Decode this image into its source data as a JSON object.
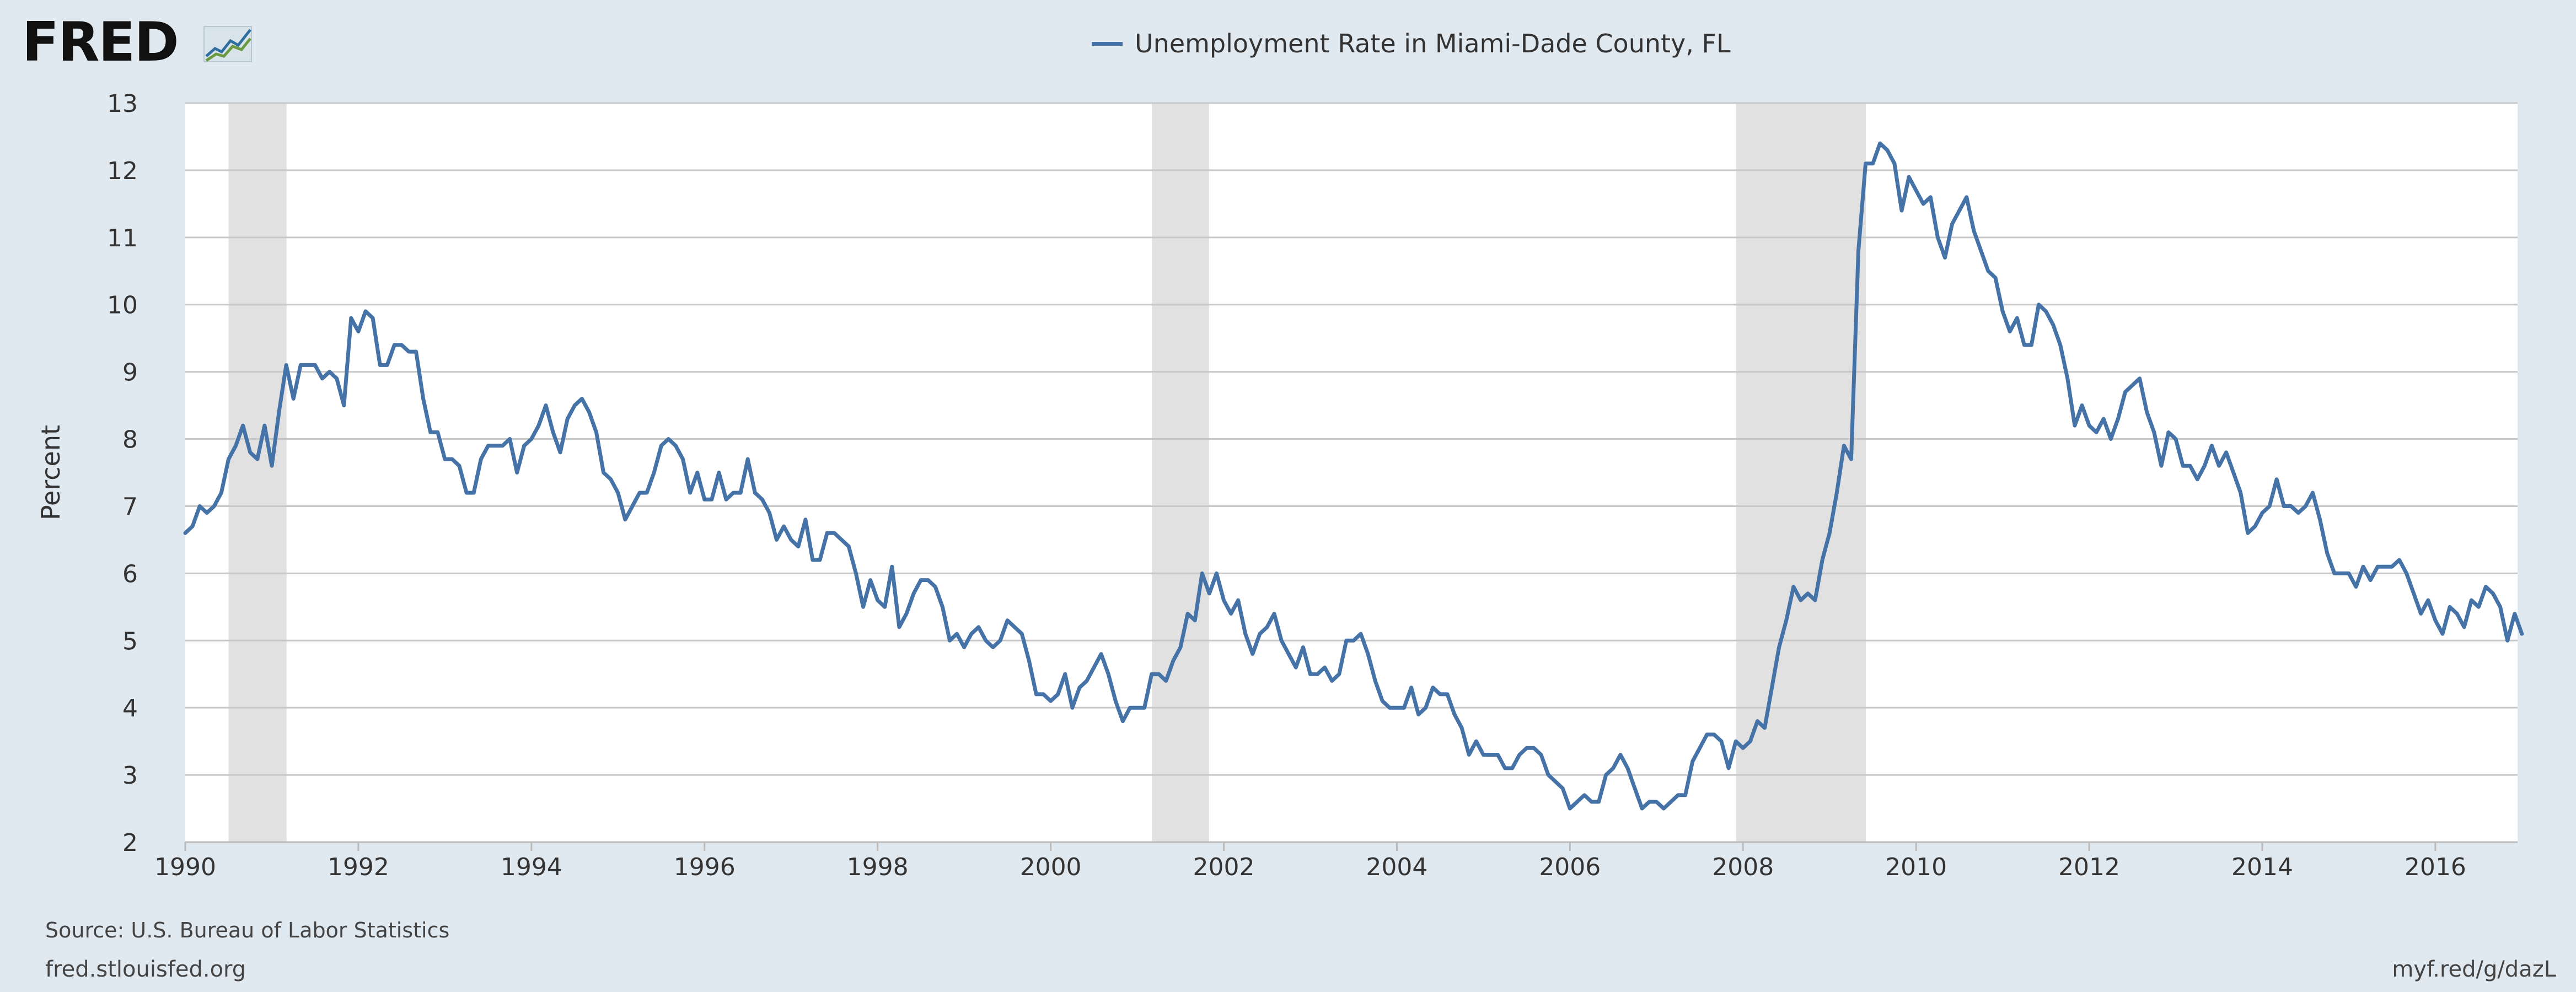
{
  "header": {
    "logo_text": "FRED",
    "logo_icon": "fred-chart-icon"
  },
  "footer": {
    "source": "Source: U.S. Bureau of Labor Statistics",
    "site": "fred.stlouisfed.org",
    "short_link": "myf.red/g/dazL"
  },
  "colors": {
    "line": "#4572a7",
    "recession": "#e1e1e1",
    "plot_bg": "#ffffff",
    "page_bg": "#e1e9f0"
  },
  "chart_data": {
    "type": "line",
    "title": "",
    "xlabel": "",
    "ylabel": "Percent",
    "xlim": [
      1990,
      2016.95
    ],
    "ylim": [
      2,
      13
    ],
    "y_ticks": [
      2,
      3,
      4,
      5,
      6,
      7,
      8,
      9,
      10,
      11,
      12,
      13
    ],
    "x_ticks": [
      "1990",
      "1992",
      "1994",
      "1996",
      "1998",
      "2000",
      "2002",
      "2004",
      "2006",
      "2008",
      "2010",
      "2012",
      "2014",
      "2016"
    ],
    "grid": true,
    "legend": "top-center",
    "recessions": [
      [
        1990.5,
        1991.17
      ],
      [
        2001.17,
        2001.83
      ],
      [
        2007.92,
        2009.42
      ]
    ],
    "series": [
      {
        "name": "Unemployment Rate in Miami-Dade County, FL",
        "start": "1990-01",
        "frequency": "monthly",
        "values": [
          6.6,
          6.7,
          7.0,
          6.9,
          7.0,
          7.2,
          7.7,
          7.9,
          8.2,
          7.8,
          7.7,
          8.2,
          7.6,
          8.4,
          9.1,
          8.6,
          9.1,
          9.1,
          9.1,
          8.9,
          9.0,
          8.9,
          8.5,
          9.8,
          9.6,
          9.9,
          9.8,
          9.1,
          9.1,
          9.4,
          9.4,
          9.3,
          9.3,
          8.6,
          8.1,
          8.1,
          7.7,
          7.7,
          7.6,
          7.2,
          7.2,
          7.7,
          7.9,
          7.9,
          7.9,
          8.0,
          7.5,
          7.9,
          8.0,
          8.2,
          8.5,
          8.1,
          7.8,
          8.3,
          8.5,
          8.6,
          8.4,
          8.1,
          7.5,
          7.4,
          7.2,
          6.8,
          7.0,
          7.2,
          7.2,
          7.5,
          7.9,
          8.0,
          7.9,
          7.7,
          7.2,
          7.5,
          7.1,
          7.1,
          7.5,
          7.1,
          7.2,
          7.2,
          7.7,
          7.2,
          7.1,
          6.9,
          6.5,
          6.7,
          6.5,
          6.4,
          6.8,
          6.2,
          6.2,
          6.6,
          6.6,
          6.5,
          6.4,
          6.0,
          5.5,
          5.9,
          5.6,
          5.5,
          6.1,
          5.2,
          5.4,
          5.7,
          5.9,
          5.9,
          5.8,
          5.5,
          5.0,
          5.1,
          4.9,
          5.1,
          5.2,
          5.0,
          4.9,
          5.0,
          5.3,
          5.2,
          5.1,
          4.7,
          4.2,
          4.2,
          4.1,
          4.2,
          4.5,
          4.0,
          4.3,
          4.4,
          4.6,
          4.8,
          4.5,
          4.1,
          3.8,
          4.0,
          4.0,
          4.0,
          4.5,
          4.5,
          4.4,
          4.7,
          4.9,
          5.4,
          5.3,
          6.0,
          5.7,
          6.0,
          5.6,
          5.4,
          5.6,
          5.1,
          4.8,
          5.1,
          5.2,
          5.4,
          5.0,
          4.8,
          4.6,
          4.9,
          4.5,
          4.5,
          4.6,
          4.4,
          4.5,
          5.0,
          5.0,
          5.1,
          4.8,
          4.4,
          4.1,
          4.0,
          4.0,
          4.0,
          4.3,
          3.9,
          4.0,
          4.3,
          4.2,
          4.2,
          3.9,
          3.7,
          3.3,
          3.5,
          3.3,
          3.3,
          3.3,
          3.1,
          3.1,
          3.3,
          3.4,
          3.4,
          3.3,
          3.0,
          2.9,
          2.8,
          2.5,
          2.6,
          2.7,
          2.6,
          2.6,
          3.0,
          3.1,
          3.3,
          3.1,
          2.8,
          2.5,
          2.6,
          2.6,
          2.5,
          2.6,
          2.7,
          2.7,
          3.2,
          3.4,
          3.6,
          3.6,
          3.5,
          3.1,
          3.5,
          3.4,
          3.5,
          3.8,
          3.7,
          4.3,
          4.9,
          5.3,
          5.8,
          5.6,
          5.7,
          5.6,
          6.2,
          6.6,
          7.2,
          7.9,
          7.7,
          10.8,
          12.1,
          12.1,
          12.4,
          12.3,
          12.1,
          11.4,
          11.9,
          11.7,
          11.5,
          11.6,
          11.0,
          10.7,
          11.2,
          11.4,
          11.6,
          11.1,
          10.8,
          10.5,
          10.4,
          9.9,
          9.6,
          9.8,
          9.4,
          9.4,
          10.0,
          9.9,
          9.7,
          9.4,
          8.9,
          8.2,
          8.5,
          8.2,
          8.1,
          8.3,
          8.0,
          8.3,
          8.7,
          8.8,
          8.9,
          8.4,
          8.1,
          7.6,
          8.1,
          8.0,
          7.6,
          7.6,
          7.4,
          7.6,
          7.9,
          7.6,
          7.8,
          7.5,
          7.2,
          6.6,
          6.7,
          6.9,
          7.0,
          7.4,
          7.0,
          7.0,
          6.9,
          7.0,
          7.2,
          6.8,
          6.3,
          6.0,
          6.0,
          6.0,
          5.8,
          6.1,
          5.9,
          6.1,
          6.1,
          6.1,
          6.2,
          6.0,
          5.7,
          5.4,
          5.6,
          5.3,
          5.1,
          5.5,
          5.4,
          5.2,
          5.6,
          5.5,
          5.8,
          5.7,
          5.5,
          5.0,
          5.4,
          5.1
        ]
      }
    ]
  }
}
